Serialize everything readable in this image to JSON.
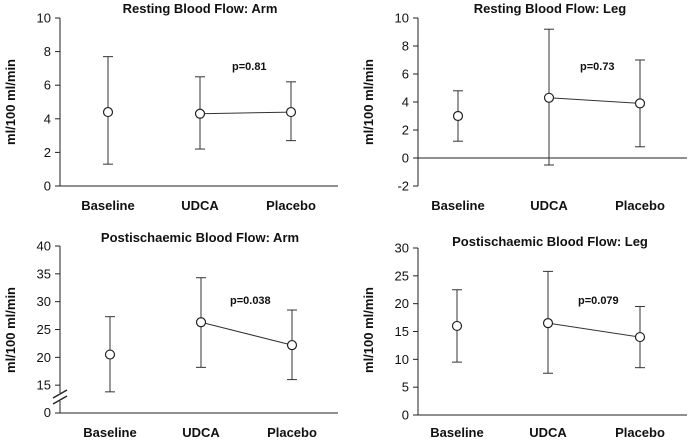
{
  "chart_data": [
    {
      "type": "scatter",
      "title": "Resting Blood Flow: Arm",
      "ylabel": "ml/100 ml/min",
      "categories": [
        "Baseline",
        "UDCA",
        "Placebo"
      ],
      "ylim": [
        0,
        10
      ],
      "yticks": [
        0,
        2,
        4,
        6,
        8,
        10
      ],
      "axis_break": false,
      "values": [
        4.4,
        4.3,
        4.4
      ],
      "error_low": [
        1.3,
        2.2,
        2.7
      ],
      "error_high": [
        7.7,
        6.5,
        6.2
      ],
      "connected": [
        "UDCA",
        "Placebo"
      ],
      "annotation": "p=0.81"
    },
    {
      "type": "scatter",
      "title": "Resting Blood Flow: Leg",
      "ylabel": "ml/100 ml/min",
      "categories": [
        "Baseline",
        "UDCA",
        "Placebo"
      ],
      "ylim": [
        -2,
        10
      ],
      "yticks": [
        -2,
        0,
        2,
        4,
        6,
        8,
        10
      ],
      "axis_break": false,
      "values": [
        3.0,
        4.3,
        3.9
      ],
      "error_low": [
        1.2,
        -0.5,
        0.8
      ],
      "error_high": [
        4.8,
        9.2,
        7.0
      ],
      "connected": [
        "UDCA",
        "Placebo"
      ],
      "annotation": "p=0.73"
    },
    {
      "type": "scatter",
      "title": "Postischaemic Blood Flow: Arm",
      "ylabel": "ml/100 ml/min",
      "categories": [
        "Baseline",
        "UDCA",
        "Placebo"
      ],
      "ylim": [
        10,
        40
      ],
      "yticks": [
        15,
        20,
        25,
        30,
        35,
        40
      ],
      "ytick_bottom_label": "0",
      "axis_break": true,
      "values": [
        20.5,
        26.3,
        22.2
      ],
      "error_low": [
        13.8,
        18.2,
        16.0
      ],
      "error_high": [
        27.3,
        34.3,
        28.5
      ],
      "connected": [
        "UDCA",
        "Placebo"
      ],
      "annotation": "p=0.038"
    },
    {
      "type": "scatter",
      "title": "Postischaemic Blood Flow: Leg",
      "ylabel": "ml/100 ml/min",
      "categories": [
        "Baseline",
        "UDCA",
        "Placebo"
      ],
      "ylim": [
        0,
        30
      ],
      "yticks": [
        0,
        5,
        10,
        15,
        20,
        25,
        30
      ],
      "axis_break": false,
      "values": [
        16.0,
        16.5,
        14.0
      ],
      "error_low": [
        9.5,
        7.5,
        8.5
      ],
      "error_high": [
        22.5,
        25.8,
        19.5
      ],
      "connected": [
        "UDCA",
        "Placebo"
      ],
      "annotation": "p=0.079"
    }
  ]
}
